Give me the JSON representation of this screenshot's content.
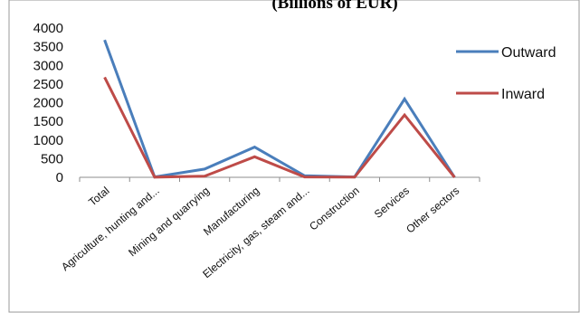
{
  "chart_data": {
    "type": "line",
    "title": "(Billions of EUR)",
    "categories": [
      "Total",
      "Agriculture, hunting and...",
      "Mining and quarrying",
      "Manufacturing",
      "Electricity, gas, steam and...",
      "Construction",
      "Services",
      "Other sectors"
    ],
    "series": [
      {
        "name": "Outward",
        "color": "#4a7ebb",
        "values": [
          3680,
          10,
          220,
          810,
          40,
          10,
          2100,
          0
        ]
      },
      {
        "name": "Inward",
        "color": "#be4b48",
        "values": [
          2680,
          5,
          30,
          550,
          10,
          5,
          1670,
          0
        ]
      }
    ],
    "yticks": [
      0,
      500,
      1000,
      1500,
      2000,
      2500,
      3000,
      3500,
      4000
    ],
    "ylim": [
      0,
      4000
    ],
    "grid": false,
    "legend_position": "right"
  }
}
